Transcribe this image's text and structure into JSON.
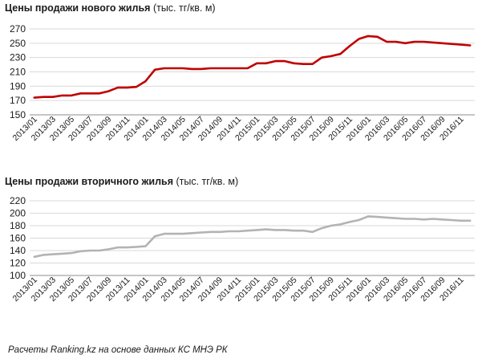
{
  "chart_data": [
    {
      "type": "line",
      "title": "Цены продажи нового жилья",
      "unit": "(тыс. тг/кв. м)",
      "ylim": [
        150,
        270
      ],
      "yticks": [
        150,
        170,
        190,
        210,
        230,
        250,
        270
      ],
      "grid": true,
      "legend": "none",
      "color": "#c00000",
      "x_tick_labels": [
        "2013/01",
        "2013/03",
        "2013/05",
        "2013/07",
        "2013/09",
        "2013/11",
        "2014/01",
        "2014/03",
        "2014/05",
        "2014/07",
        "2014/09",
        "2014/11",
        "2015/01",
        "2015/03",
        "2015/05",
        "2015/07",
        "2015/09",
        "2015/11",
        "2016/01",
        "2016/03",
        "2016/05",
        "2016/07",
        "2016/09",
        "2016/11"
      ],
      "x": [
        "2013/01",
        "2013/02",
        "2013/03",
        "2013/04",
        "2013/05",
        "2013/06",
        "2013/07",
        "2013/08",
        "2013/09",
        "2013/10",
        "2013/11",
        "2013/12",
        "2014/01",
        "2014/02",
        "2014/03",
        "2014/04",
        "2014/05",
        "2014/06",
        "2014/07",
        "2014/08",
        "2014/09",
        "2014/10",
        "2014/11",
        "2014/12",
        "2015/01",
        "2015/02",
        "2015/03",
        "2015/04",
        "2015/05",
        "2015/06",
        "2015/07",
        "2015/08",
        "2015/09",
        "2015/10",
        "2015/11",
        "2015/12",
        "2016/01",
        "2016/02",
        "2016/03",
        "2016/04",
        "2016/05",
        "2016/06",
        "2016/07",
        "2016/08",
        "2016/09",
        "2016/10",
        "2016/11",
        "2016/12"
      ],
      "values": [
        174,
        175,
        175,
        177,
        177,
        180,
        180,
        180,
        183,
        188,
        188,
        189,
        197,
        213,
        215,
        215,
        215,
        214,
        214,
        215,
        215,
        215,
        215,
        215,
        222,
        222,
        225,
        225,
        222,
        221,
        221,
        230,
        232,
        235,
        246,
        256,
        260,
        259,
        252,
        252,
        250,
        252,
        252,
        251,
        250,
        249,
        248,
        247
      ]
    },
    {
      "type": "line",
      "title": "Цены продажи вторичного  жилья",
      "unit": "(тыс. тг/кв. м)",
      "ylim": [
        100,
        220
      ],
      "yticks": [
        100,
        120,
        140,
        160,
        180,
        200,
        220
      ],
      "grid": true,
      "legend": "none",
      "color": "#b3b3b3",
      "x_tick_labels": [
        "2013/01",
        "2013/03",
        "2013/05",
        "2013/07",
        "2013/09",
        "2013/11",
        "2014/01",
        "2014/03",
        "2014/05",
        "2014/07",
        "2014/09",
        "2014/11",
        "2015/01",
        "2015/03",
        "2015/05",
        "2015/07",
        "2015/09",
        "2015/11",
        "2016/01",
        "2016/03",
        "2016/05",
        "2016/07",
        "2016/09",
        "2016/11"
      ],
      "x": [
        "2013/01",
        "2013/02",
        "2013/03",
        "2013/04",
        "2013/05",
        "2013/06",
        "2013/07",
        "2013/08",
        "2013/09",
        "2013/10",
        "2013/11",
        "2013/12",
        "2014/01",
        "2014/02",
        "2014/03",
        "2014/04",
        "2014/05",
        "2014/06",
        "2014/07",
        "2014/08",
        "2014/09",
        "2014/10",
        "2014/11",
        "2014/12",
        "2015/01",
        "2015/02",
        "2015/03",
        "2015/04",
        "2015/05",
        "2015/06",
        "2015/07",
        "2015/08",
        "2015/09",
        "2015/10",
        "2015/11",
        "2015/12",
        "2016/01",
        "2016/02",
        "2016/03",
        "2016/04",
        "2016/05",
        "2016/06",
        "2016/07",
        "2016/08",
        "2016/09",
        "2016/10",
        "2016/11",
        "2016/12"
      ],
      "values": [
        130,
        133,
        134,
        135,
        136,
        139,
        140,
        140,
        142,
        145,
        145,
        146,
        147,
        163,
        167,
        167,
        167,
        168,
        169,
        170,
        170,
        171,
        171,
        172,
        173,
        174,
        173,
        173,
        172,
        172,
        170,
        176,
        180,
        182,
        186,
        189,
        195,
        194,
        193,
        192,
        191,
        191,
        190,
        191,
        190,
        189,
        188,
        188
      ]
    }
  ],
  "footer": {
    "source": "Расчеты Ranking.kz на основе данных КС МНЭ РК"
  }
}
